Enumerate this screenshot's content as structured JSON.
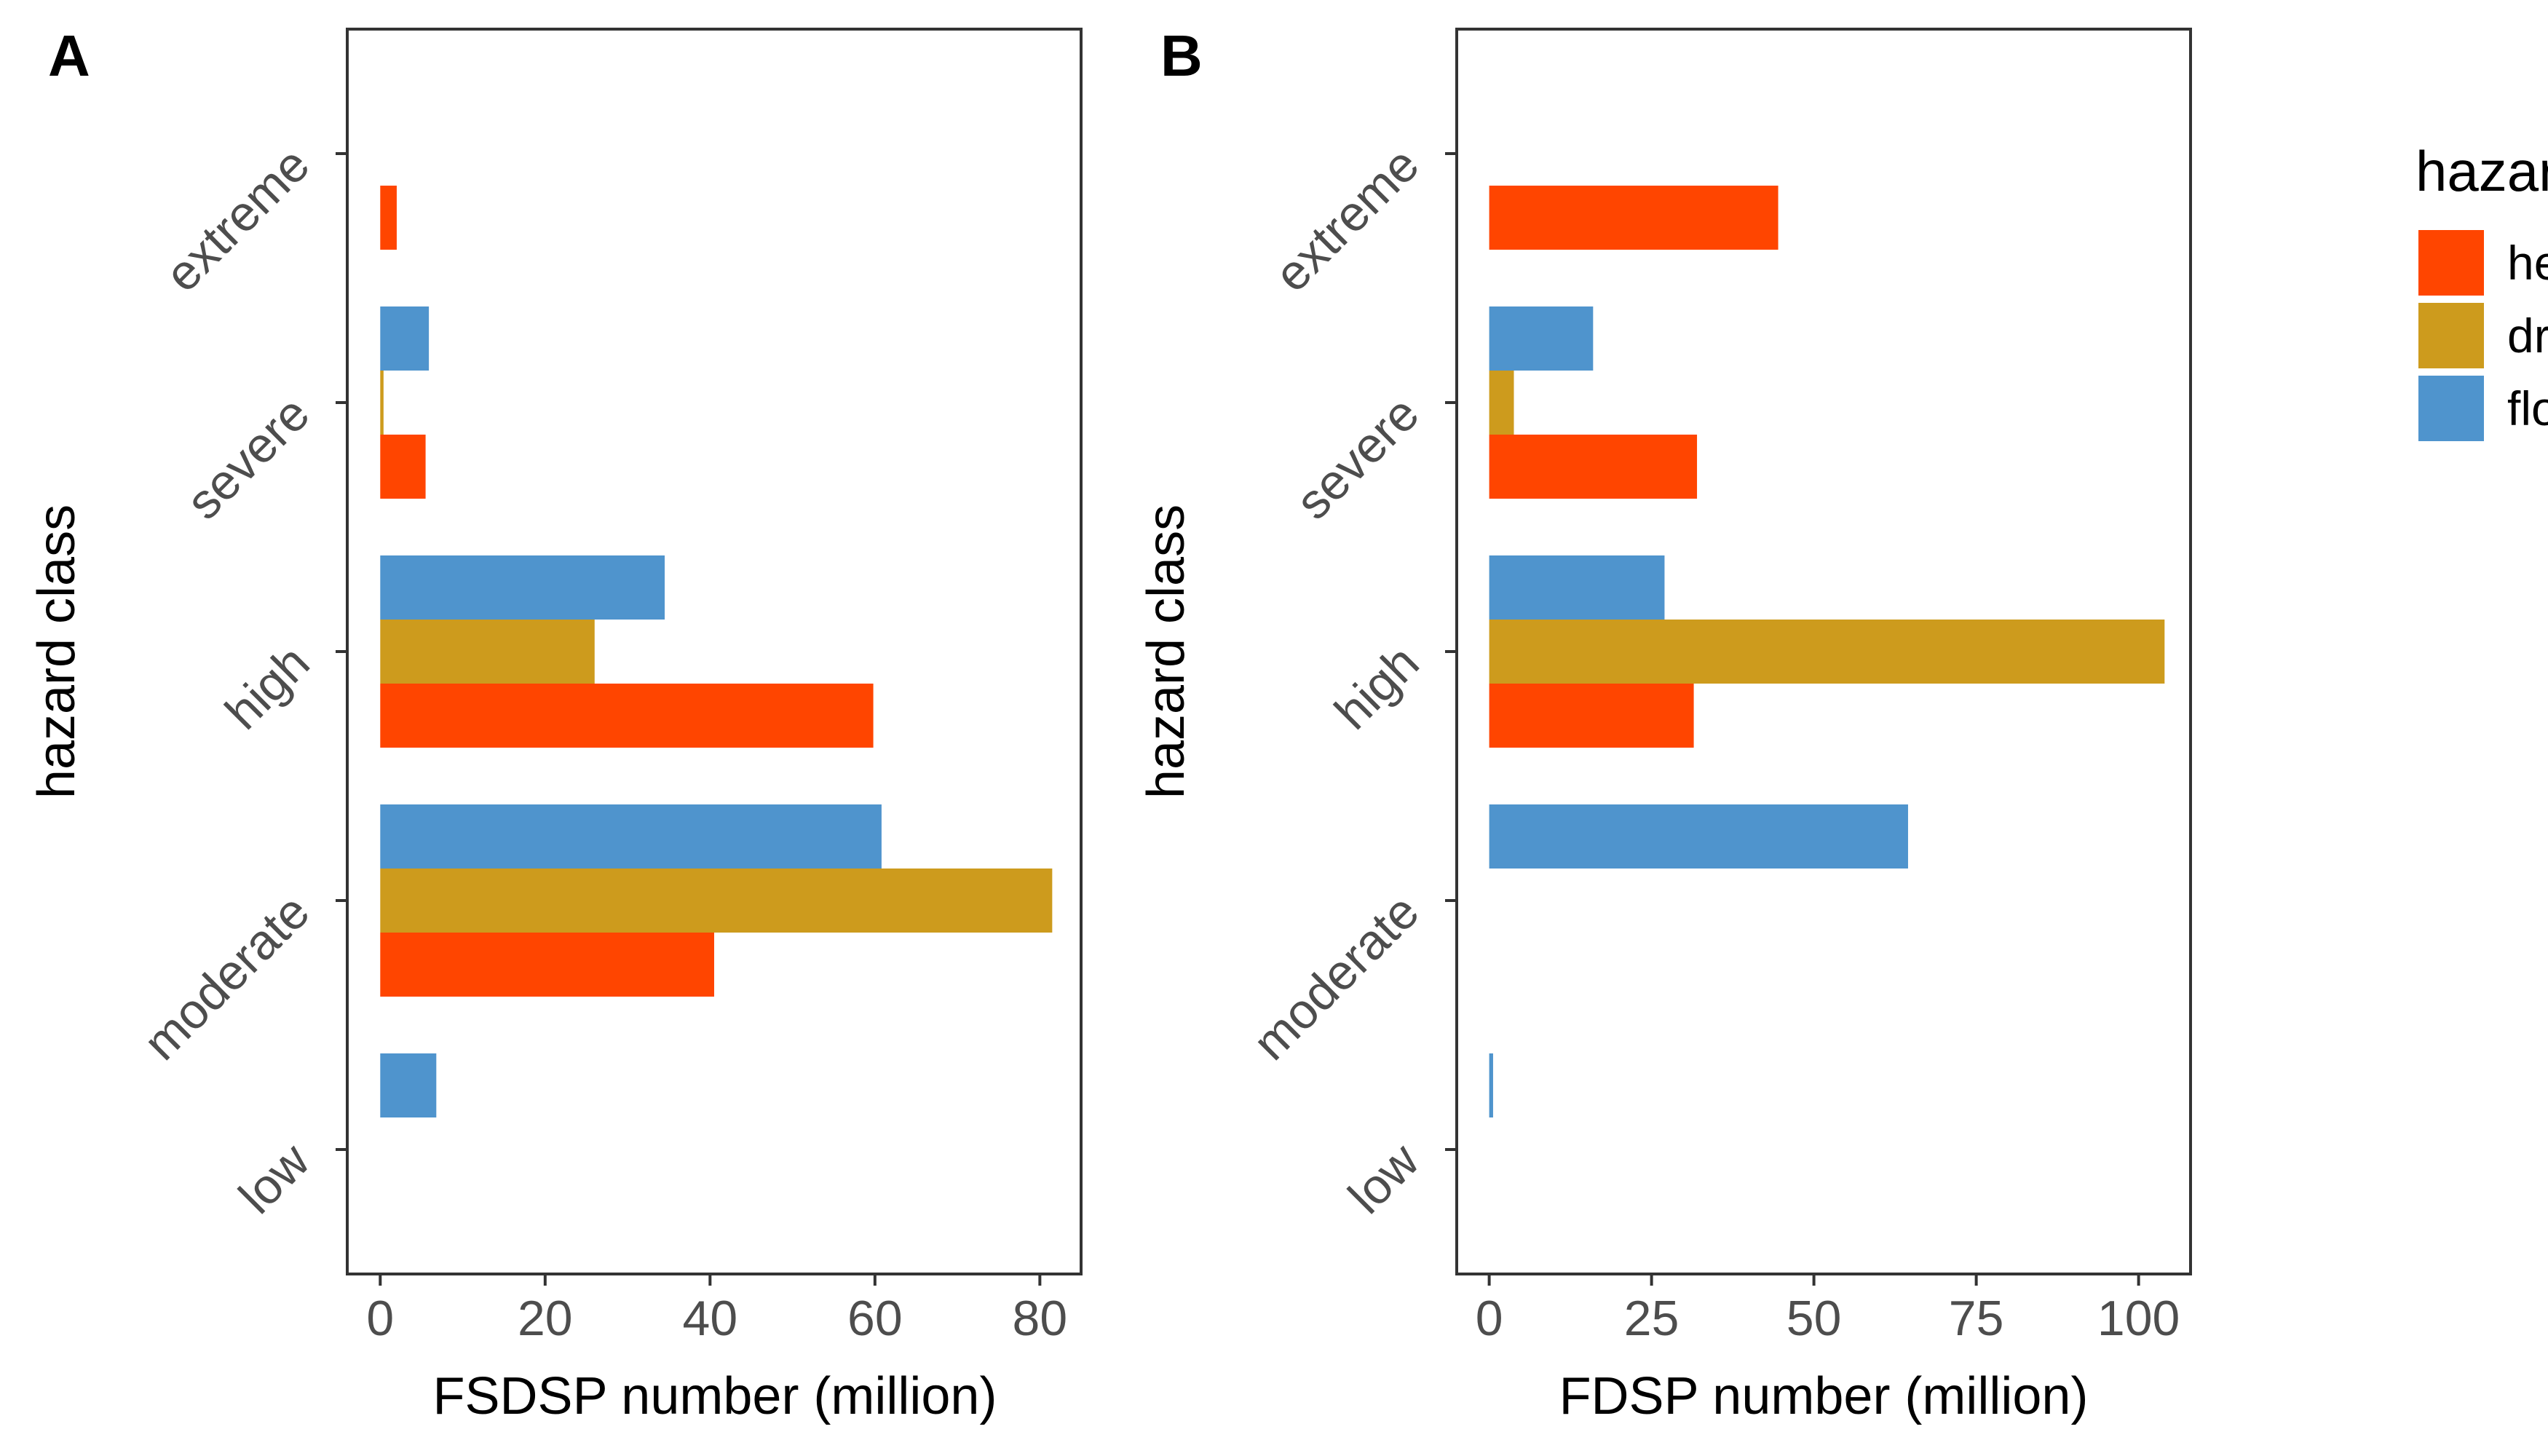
{
  "colors": {
    "heatwave": "#FF4500",
    "drought": "#CD9B1D",
    "flood": "#4F94CD"
  },
  "chart_data": [
    {
      "type": "bar",
      "orientation": "horizontal",
      "panel_label": "A",
      "xlabel": "FSDSP number (million)",
      "ylabel": "hazard class",
      "categories": [
        "low",
        "moderate",
        "high",
        "severe",
        "extreme"
      ],
      "xlim": [
        -4,
        85
      ],
      "xticks": [
        0,
        20,
        40,
        60,
        80
      ],
      "xtick_labels": [
        "0",
        "20",
        "40",
        "60",
        "80"
      ],
      "series": [
        {
          "name": "heatwave",
          "values": [
            0,
            40.5,
            59.8,
            5.5,
            2
          ]
        },
        {
          "name": "drought",
          "values": [
            0,
            81.5,
            26,
            0.4,
            0
          ]
        },
        {
          "name": "flood",
          "values": [
            6.8,
            60.8,
            34.5,
            5.9,
            0
          ]
        }
      ]
    },
    {
      "type": "bar",
      "orientation": "horizontal",
      "panel_label": "B",
      "xlabel": "FDSP number (million)",
      "ylabel": "hazard class",
      "categories": [
        "low",
        "moderate",
        "high",
        "severe",
        "extreme"
      ],
      "xlim": [
        -5,
        108
      ],
      "xticks": [
        0,
        25,
        50,
        75,
        100
      ],
      "xtick_labels": [
        "0",
        "25",
        "50",
        "75",
        "100"
      ],
      "series": [
        {
          "name": "heatwave",
          "values": [
            0,
            0,
            31.5,
            32,
            44.5
          ]
        },
        {
          "name": "drought",
          "values": [
            0,
            0,
            104,
            3.8,
            0
          ]
        },
        {
          "name": "flood",
          "values": [
            0.6,
            64.5,
            27,
            16,
            0
          ]
        }
      ]
    }
  ],
  "legend": {
    "title": "hazard",
    "items": [
      "heatwave",
      "drought",
      "flood"
    ]
  }
}
